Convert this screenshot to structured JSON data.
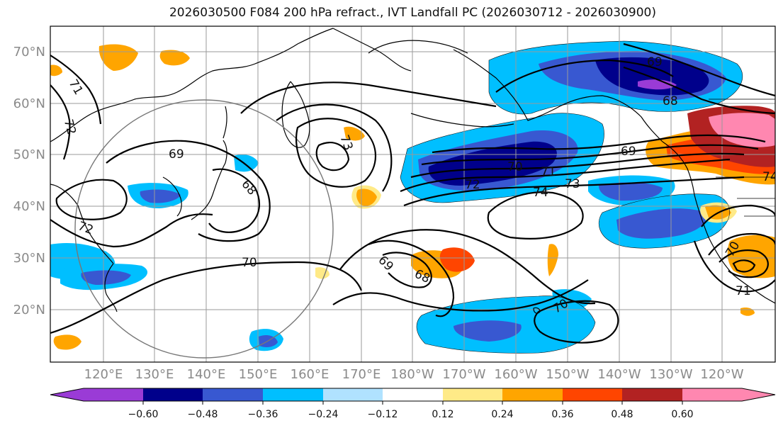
{
  "title": "2026030500 F084 200 hPa refract., IVT Landfall PC (2026030712 - 2026030900)",
  "latitude_labels": [
    "70°N",
    "60°N",
    "50°N",
    "40°N",
    "30°N",
    "20°N"
  ],
  "longitude_labels": [
    "120°E",
    "130°E",
    "140°E",
    "150°E",
    "160°E",
    "170°E",
    "180°W",
    "170°W",
    "160°W",
    "150°W",
    "140°W",
    "130°W",
    "120°W"
  ],
  "colorbar": {
    "tick_labels": [
      "−0.60",
      "−0.48",
      "−0.36",
      "−0.24",
      "−0.12",
      "0.12",
      "0.24",
      "0.36",
      "0.48",
      "0.60"
    ],
    "colors": [
      "#9a3bd6",
      "#00008b",
      "#3858d1",
      "#00bfff",
      "#b0e2ff",
      "#ffffff",
      "#ffea87",
      "#ffa500",
      "#ff4500",
      "#b22222",
      "#ff87b0"
    ]
  },
  "contour_labels": [
    "71",
    "72",
    "69",
    "68",
    "70",
    "72",
    "73",
    "69",
    "68",
    "70",
    "72",
    "71",
    "73",
    "74",
    "69",
    "69",
    "68",
    "70",
    "70",
    "71",
    "74"
  ]
}
